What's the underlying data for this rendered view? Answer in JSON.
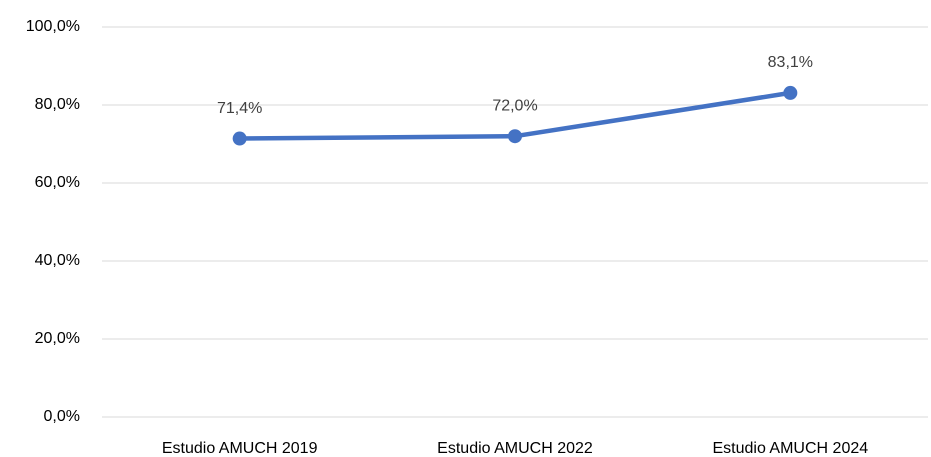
{
  "chart_data": {
    "type": "line",
    "categories": [
      "Estudio AMUCH 2019",
      "Estudio AMUCH 2022",
      "Estudio AMUCH 2024"
    ],
    "series": [
      {
        "color": "#4472c4",
        "values": [
          71.4,
          72.0,
          83.1
        ],
        "value_labels": [
          "71,4%",
          "72,0%",
          "83,1%"
        ]
      }
    ],
    "ylim": [
      0,
      100
    ],
    "yticks": [
      {
        "value": 0,
        "label": "0,0%"
      },
      {
        "value": 20,
        "label": "20,0%"
      },
      {
        "value": 40,
        "label": "40,0%"
      },
      {
        "value": 60,
        "label": "60,0%"
      },
      {
        "value": 80,
        "label": "80,0%"
      },
      {
        "value": 100,
        "label": "100,0%"
      }
    ],
    "grid": true
  }
}
